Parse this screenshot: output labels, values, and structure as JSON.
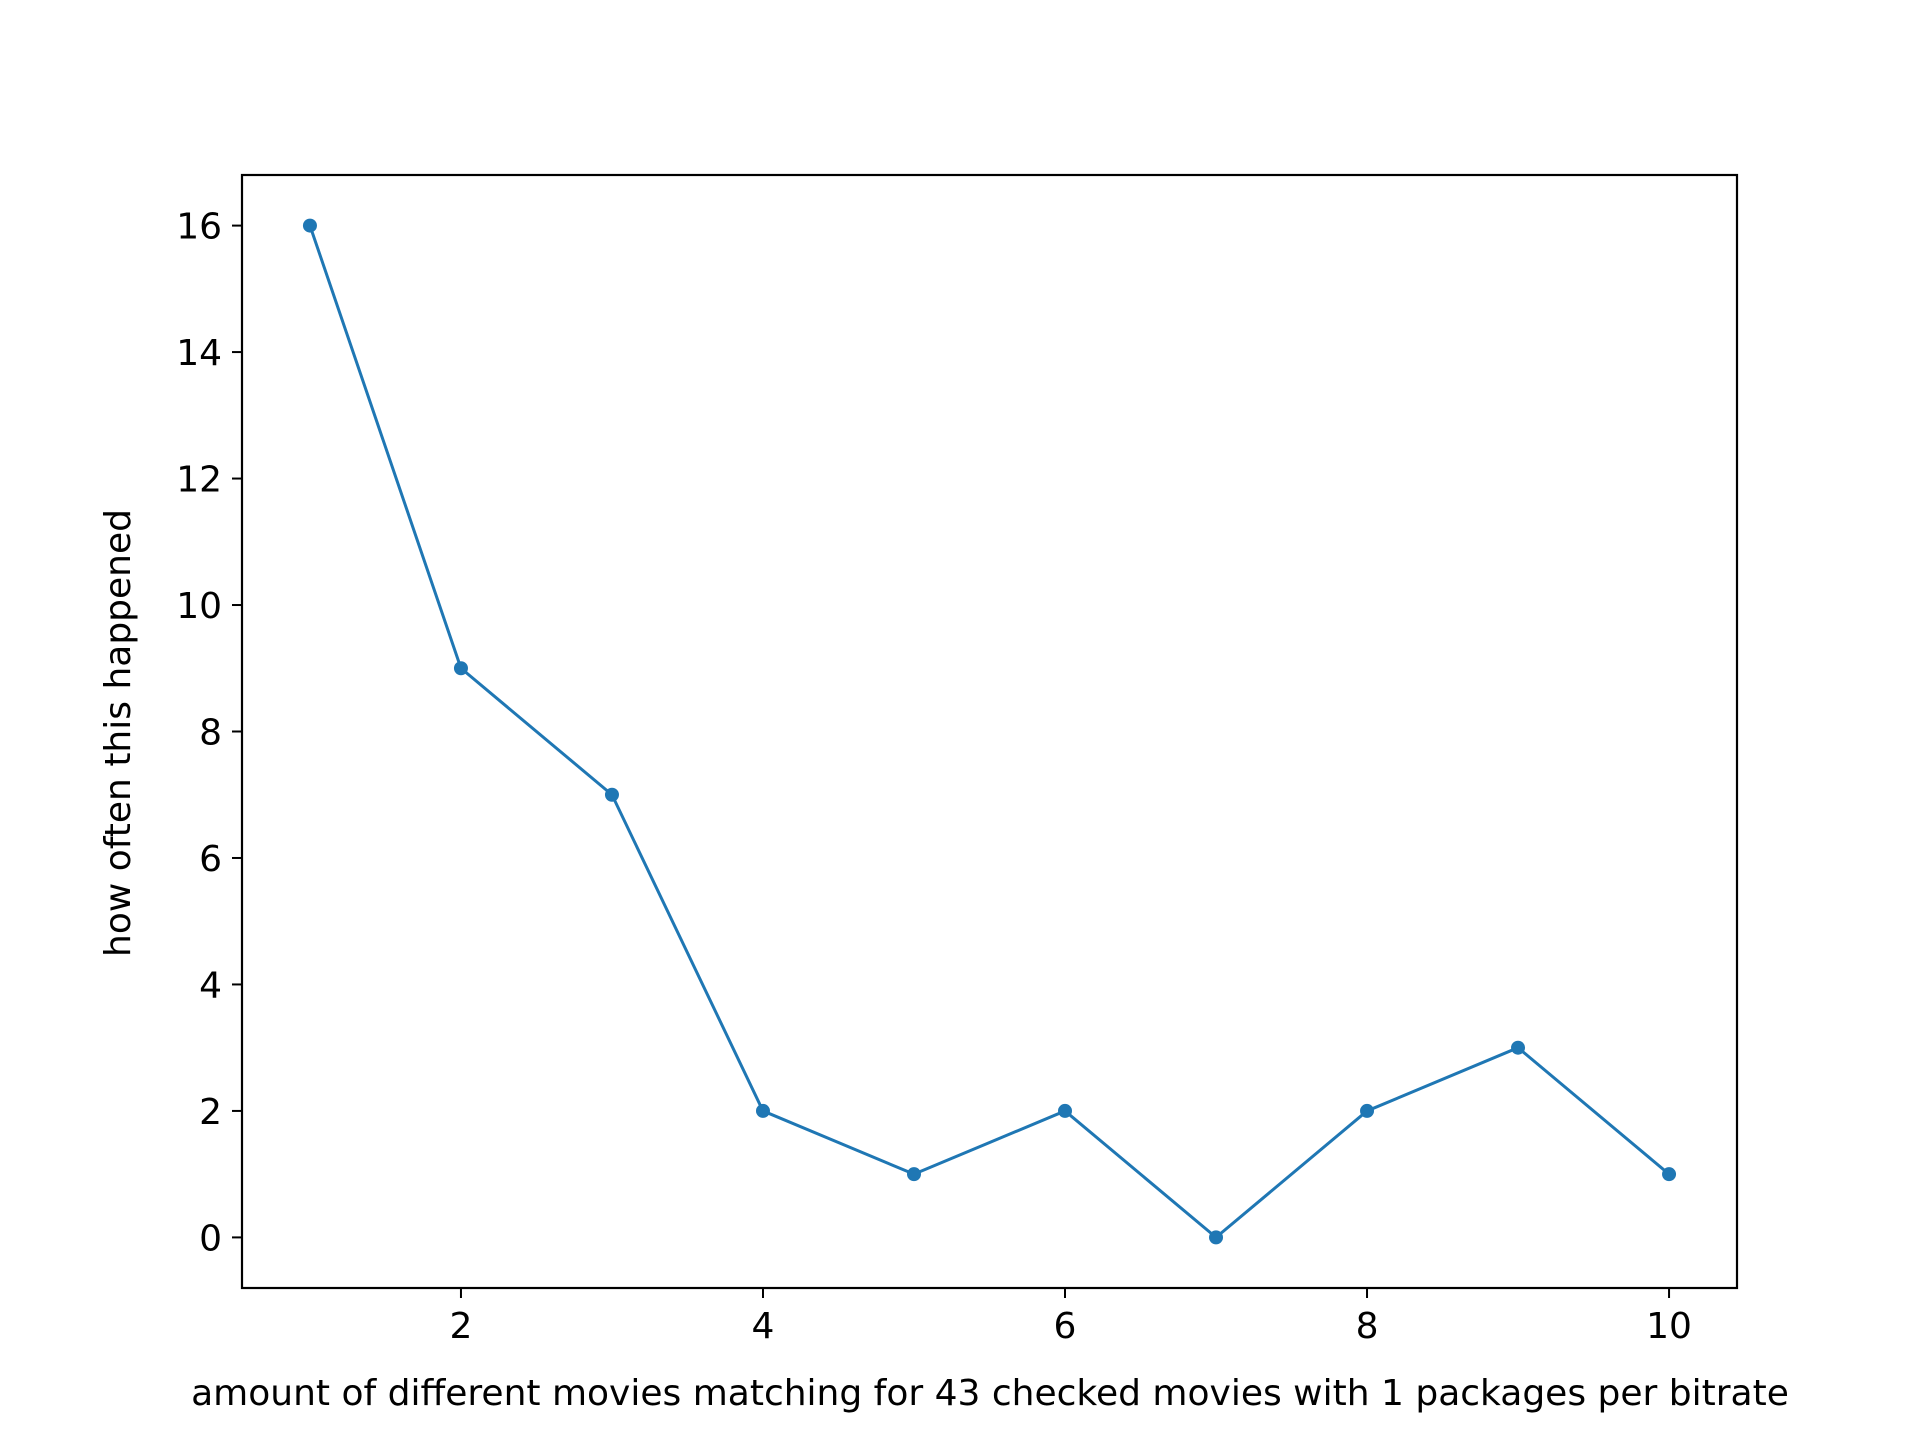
{
  "chart_data": {
    "type": "line",
    "title": "",
    "xlabel": "amount of different movies matching for 43 checked movies with 1 packages per bitrate",
    "ylabel": "how often this happened",
    "x": [
      1,
      2,
      3,
      4,
      5,
      6,
      7,
      8,
      9,
      10
    ],
    "series": [
      {
        "values": [
          16,
          9,
          7,
          2,
          1,
          2,
          0,
          2,
          3,
          1
        ]
      }
    ],
    "xlim": [
      0.55,
      10.45
    ],
    "ylim": [
      -0.8,
      16.8
    ],
    "xticks": [
      2,
      4,
      6,
      8,
      10
    ],
    "yticks": [
      0,
      2,
      4,
      6,
      8,
      10,
      12,
      14,
      16
    ],
    "grid": false,
    "legend": "none",
    "line_color": "#1f77b4",
    "axes_color": "#000000",
    "marker": "circle"
  }
}
